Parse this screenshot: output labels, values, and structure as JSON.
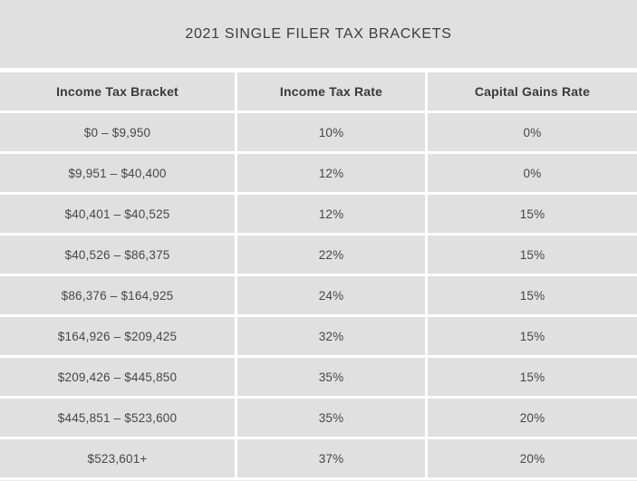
{
  "title": "2021 SINGLE FILER TAX BRACKETS",
  "colors": {
    "band_bg": "#e0e0e0",
    "cell_bg": "#e0e0e0",
    "gutter": "#ffffff",
    "title_text": "#3d3d3d",
    "header_text": "#3a3a3a",
    "cell_text": "#474747"
  },
  "table": {
    "headers": [
      "Income Tax Bracket",
      "Income Tax Rate",
      "Capital Gains Rate"
    ],
    "rows": [
      {
        "bracket": "$0 – $9,950",
        "income_rate": "10%",
        "capital_gains_rate": "0%"
      },
      {
        "bracket": "$9,951 – $40,400",
        "income_rate": "12%",
        "capital_gains_rate": "0%"
      },
      {
        "bracket": "$40,401 – $40,525",
        "income_rate": "12%",
        "capital_gains_rate": "15%"
      },
      {
        "bracket": "$40,526 – $86,375",
        "income_rate": "22%",
        "capital_gains_rate": "15%"
      },
      {
        "bracket": "$86,376 – $164,925",
        "income_rate": "24%",
        "capital_gains_rate": "15%"
      },
      {
        "bracket": "$164,926 – $209,425",
        "income_rate": "32%",
        "capital_gains_rate": "15%"
      },
      {
        "bracket": "$209,426 – $445,850",
        "income_rate": "35%",
        "capital_gains_rate": "15%"
      },
      {
        "bracket": "$445,851 – $523,600",
        "income_rate": "35%",
        "capital_gains_rate": "20%"
      },
      {
        "bracket": "$523,601+",
        "income_rate": "37%",
        "capital_gains_rate": "20%"
      }
    ]
  },
  "chart_data": {
    "type": "table",
    "title": "2021 SINGLE FILER TAX BRACKETS",
    "columns": [
      "Income Tax Bracket",
      "Income Tax Rate",
      "Capital Gains Rate"
    ],
    "rows": [
      [
        "$0 – $9,950",
        "10%",
        "0%"
      ],
      [
        "$9,951 – $40,400",
        "12%",
        "0%"
      ],
      [
        "$40,401 – $40,525",
        "12%",
        "15%"
      ],
      [
        "$40,526 – $86,375",
        "22%",
        "15%"
      ],
      [
        "$86,376 – $164,925",
        "24%",
        "15%"
      ],
      [
        "$164,926 – $209,425",
        "32%",
        "15%"
      ],
      [
        "$209,426 – $445,850",
        "35%",
        "15%"
      ],
      [
        "$445,851 – $523,600",
        "35%",
        "20%"
      ],
      [
        "$523,601+",
        "37%",
        "20%"
      ]
    ],
    "layout_hints": {
      "row_background": "#e0e0e0",
      "gutter_color": "#ffffff",
      "header_bold": true,
      "all_cells_centered": true
    }
  }
}
